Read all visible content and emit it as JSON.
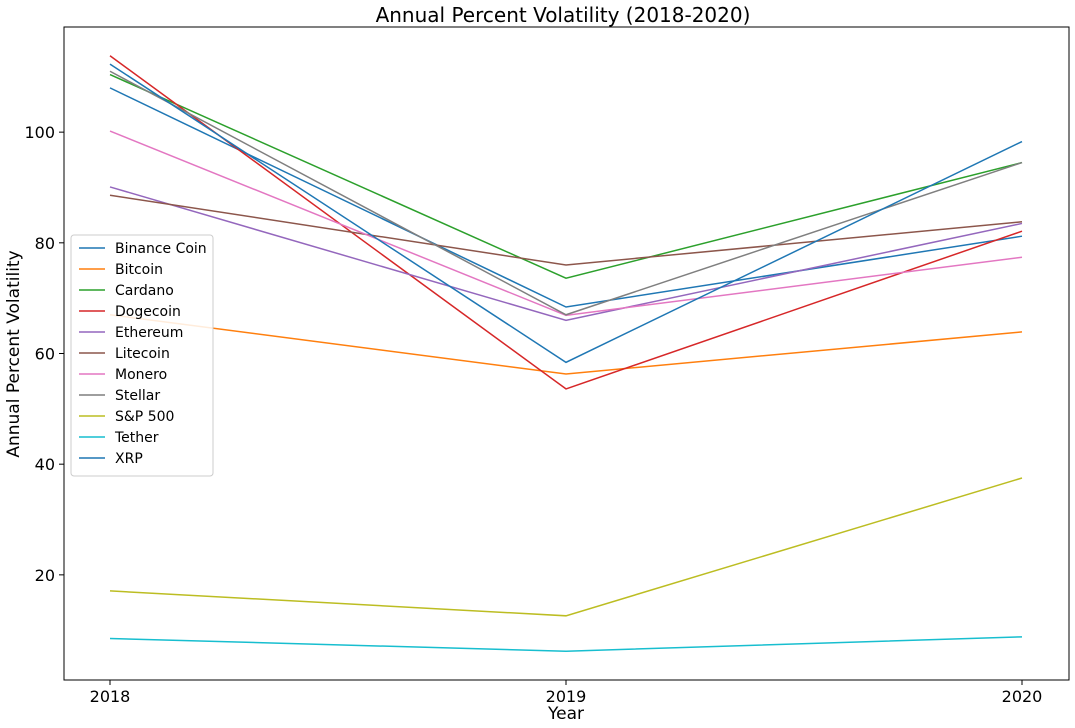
{
  "chart_data": {
    "type": "line",
    "title": "Annual Percent Volatility (2018-2020)",
    "xlabel": "Year",
    "ylabel": "Annual Percent Volatility",
    "categories": [
      "2018",
      "2019",
      "2020"
    ],
    "yticks": [
      20,
      40,
      60,
      80,
      100
    ],
    "ylim": [
      1,
      119
    ],
    "grid": false,
    "legend_position": "center-left",
    "series": [
      {
        "name": "Binance Coin",
        "color": "#1f77b4",
        "values": [
          108.0,
          68.4,
          81.2
        ]
      },
      {
        "name": "Bitcoin",
        "color": "#ff7f0e",
        "values": [
          67.0,
          56.3,
          63.9
        ]
      },
      {
        "name": "Cardano",
        "color": "#2ca02c",
        "values": [
          110.4,
          73.6,
          94.5
        ]
      },
      {
        "name": "Dogecoin",
        "color": "#d62728",
        "values": [
          113.8,
          53.6,
          82.1
        ]
      },
      {
        "name": "Ethereum",
        "color": "#9467bd",
        "values": [
          90.1,
          66.0,
          83.5
        ]
      },
      {
        "name": "Litecoin",
        "color": "#8c564b",
        "values": [
          88.6,
          76.0,
          83.8
        ]
      },
      {
        "name": "Monero",
        "color": "#e377c2",
        "values": [
          100.2,
          66.9,
          77.4
        ]
      },
      {
        "name": "Stellar",
        "color": "#7f7f7f",
        "values": [
          111.0,
          67.0,
          94.5
        ]
      },
      {
        "name": "S&P 500",
        "color": "#bcbd22",
        "values": [
          17.1,
          12.6,
          37.5
        ]
      },
      {
        "name": "Tether",
        "color": "#17becf",
        "values": [
          8.5,
          6.2,
          8.8
        ]
      },
      {
        "name": "XRP",
        "color": "#1f77b4",
        "values": [
          112.3,
          58.4,
          98.3
        ]
      }
    ]
  }
}
